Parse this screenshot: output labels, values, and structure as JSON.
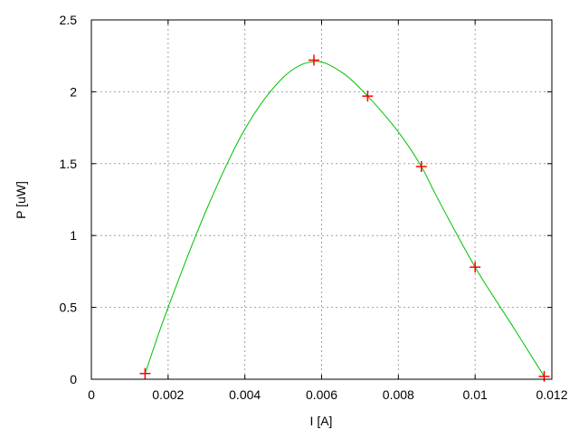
{
  "chart_data": {
    "type": "line",
    "title": "",
    "xlabel": "I [A]",
    "ylabel": "P [uW]",
    "xlim": [
      0,
      0.012
    ],
    "ylim": [
      0,
      2.5
    ],
    "x_ticks": [
      0,
      0.002,
      0.004,
      0.006,
      0.008,
      0.01,
      0.012
    ],
    "x_tick_labels": [
      "0",
      "0.002",
      "0.004",
      "0.006",
      "0.008",
      "0.01",
      "0.012"
    ],
    "y_ticks": [
      0,
      0.5,
      1,
      1.5,
      2,
      2.5
    ],
    "y_tick_labels": [
      "0",
      "0.5",
      "1",
      "1.5",
      "2",
      "2.5"
    ],
    "grid": true,
    "points": {
      "marker": "cross",
      "color": "#ff0000",
      "x": [
        0.0014,
        0.0058,
        0.0072,
        0.0086,
        0.01,
        0.0118
      ],
      "y": [
        0.04,
        2.22,
        1.97,
        1.48,
        0.78,
        0.02
      ]
    },
    "curve": {
      "color": "#00c000",
      "x": [
        0.0014,
        0.002,
        0.003,
        0.004,
        0.005,
        0.0058,
        0.0065,
        0.0072,
        0.008,
        0.0086,
        0.009,
        0.01,
        0.011,
        0.0118
      ],
      "y": [
        0.04,
        0.5,
        1.18,
        1.74,
        2.1,
        2.21,
        2.14,
        1.97,
        1.72,
        1.48,
        1.27,
        0.78,
        0.36,
        0.02
      ]
    }
  }
}
